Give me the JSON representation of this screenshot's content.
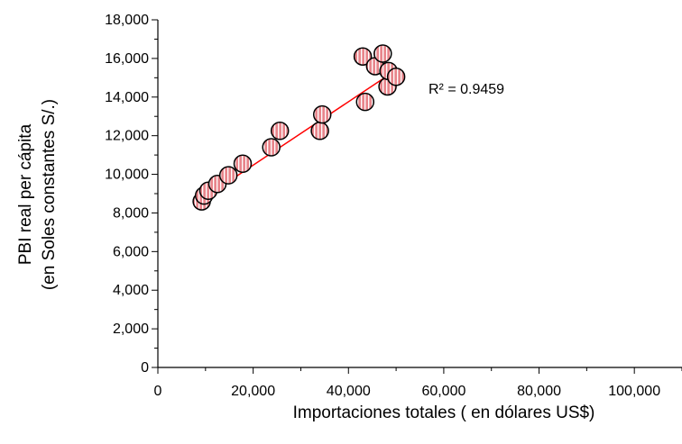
{
  "chart_data": {
    "type": "scatter",
    "xlabel": "Importaciones totales ( en dólares US$)",
    "ylabel_lines": [
      "PBI real per cápita",
      "(en Soles constantes S/.)"
    ],
    "xlim": [
      0,
      110000
    ],
    "ylim": [
      0,
      18000
    ],
    "x_ticks": [
      0,
      20000,
      40000,
      60000,
      80000,
      100000
    ],
    "x_tick_labels": [
      "0",
      "20,000",
      "40,000",
      "60,000",
      "80,000",
      "100,000"
    ],
    "y_ticks": [
      0,
      2000,
      4000,
      6000,
      8000,
      10000,
      12000,
      14000,
      16000,
      18000
    ],
    "y_tick_labels": [
      "0",
      "2,000",
      "4,000",
      "6,000",
      "8,000",
      "10,000",
      "12,000",
      "14,000",
      "16,000",
      "18,000"
    ],
    "points": [
      {
        "x": 9200,
        "y": 8600
      },
      {
        "x": 9700,
        "y": 8900
      },
      {
        "x": 10600,
        "y": 9150
      },
      {
        "x": 12500,
        "y": 9500
      },
      {
        "x": 14800,
        "y": 9950
      },
      {
        "x": 17800,
        "y": 10550
      },
      {
        "x": 23800,
        "y": 11400
      },
      {
        "x": 25600,
        "y": 12250
      },
      {
        "x": 34000,
        "y": 12250
      },
      {
        "x": 34500,
        "y": 13100
      },
      {
        "x": 43000,
        "y": 16100
      },
      {
        "x": 43500,
        "y": 13750
      },
      {
        "x": 45600,
        "y": 15600
      },
      {
        "x": 47200,
        "y": 16250
      },
      {
        "x": 48200,
        "y": 14550
      },
      {
        "x": 48400,
        "y": 15350
      },
      {
        "x": 50000,
        "y": 15050
      }
    ],
    "trendline": {
      "x_start": 9200,
      "y_start": 8700,
      "x_end": 50000,
      "y_end": 15400
    },
    "r2_label": "R² = 0.9459",
    "grid": false,
    "colors": {
      "marker_fill": "#e8858b",
      "marker_stripe": "#ffffff",
      "marker_edge": "#000000",
      "trendline": "#ff0000",
      "axis": "#000000"
    }
  }
}
